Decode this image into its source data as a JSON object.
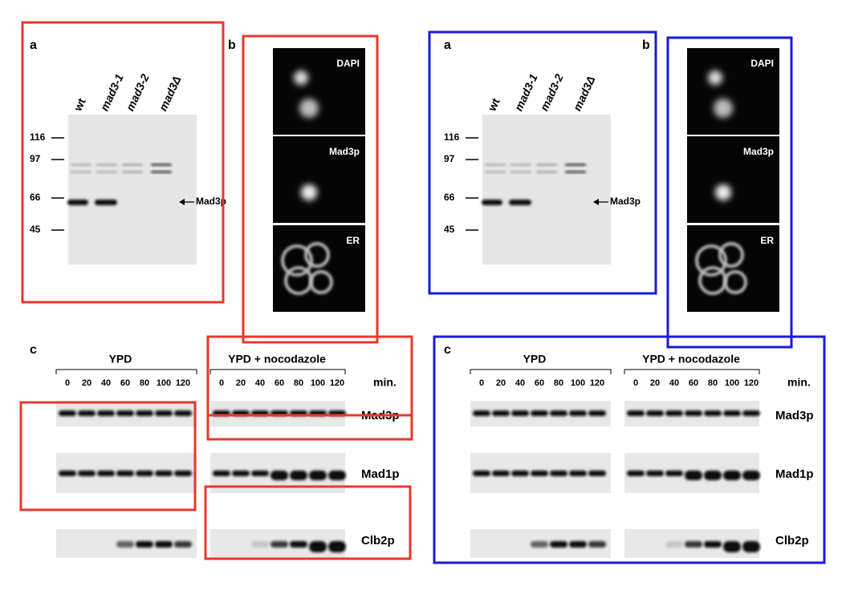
{
  "figures": [
    {
      "panel_a": {
        "label": "a",
        "lanes": [
          "wt",
          "mad3-1",
          "mad3-2",
          "mad3Δ"
        ],
        "markers": [
          "116",
          "97",
          "66",
          "45"
        ],
        "arrow_label": "Mad3p"
      },
      "panel_b": {
        "label": "b",
        "images": [
          "DAPI",
          "Mad3p",
          "ER"
        ]
      },
      "panel_c": {
        "label": "c",
        "groups": [
          "YPD",
          "YPD + nocodazole"
        ],
        "times": [
          "0",
          "20",
          "40",
          "60",
          "80",
          "100",
          "120"
        ],
        "unit": "min.",
        "rows": [
          "Mad3p",
          "Mad1p",
          "Clb2p"
        ]
      }
    },
    {
      "panel_a": {
        "label": "a",
        "lanes": [
          "wt",
          "mad3-1",
          "mad3-2",
          "mad3Δ"
        ],
        "markers": [
          "116",
          "97",
          "66",
          "45"
        ],
        "arrow_label": "Mad3p"
      },
      "panel_b": {
        "label": "b",
        "images": [
          "DAPI",
          "Mad3p",
          "ER"
        ]
      },
      "panel_c": {
        "label": "c",
        "groups": [
          "YPD",
          "YPD + nocodazole"
        ],
        "times": [
          "0",
          "20",
          "40",
          "60",
          "80",
          "100",
          "120"
        ],
        "unit": "min.",
        "rows": [
          "Mad3p",
          "Mad1p",
          "Clb2p"
        ]
      }
    }
  ]
}
